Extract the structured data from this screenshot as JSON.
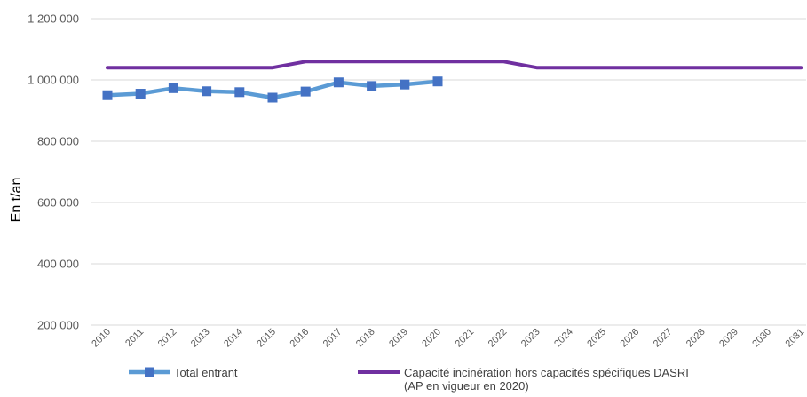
{
  "colors": {
    "grid": "#d9d9d9",
    "total": "#5b9bd5",
    "total_marker": "#4472c4",
    "capacity": "#7030a0"
  },
  "chart_data": {
    "type": "line",
    "title": "",
    "xlabel": "",
    "ylabel": "En t/an",
    "x": [
      "2010",
      "2011",
      "2012",
      "2013",
      "2014",
      "2015",
      "2016",
      "2017",
      "2018",
      "2019",
      "2020",
      "2021",
      "2022",
      "2023",
      "2024",
      "2025",
      "2026",
      "2027",
      "2028",
      "2029",
      "2030",
      "2031"
    ],
    "ylim": [
      200000,
      1200000
    ],
    "yticks": [
      200000,
      400000,
      600000,
      800000,
      1000000,
      1200000
    ],
    "ytick_labels": [
      "200 000",
      "400 000",
      "600 000",
      "800 000",
      "1 000 000",
      "1 200 000"
    ],
    "grid": true,
    "legend_position": "bottom",
    "series": [
      {
        "name": "Total entrant",
        "marker": "square",
        "values": [
          950000,
          955000,
          973000,
          963000,
          960000,
          942000,
          962000,
          992000,
          980000,
          985000,
          995000,
          null,
          null,
          null,
          null,
          null,
          null,
          null,
          null,
          null,
          null,
          null
        ]
      },
      {
        "name": "Capacité incinération hors capacités spécifiques DASRI (AP en vigueur en 2020)",
        "legend_lines": [
          "Capacité incinération hors capacités spécifiques DASRI",
          "(AP en vigueur en 2020)"
        ],
        "marker": "none",
        "values": [
          1040000,
          1040000,
          1040000,
          1040000,
          1040000,
          1040000,
          1060000,
          1060000,
          1060000,
          1060000,
          1060000,
          1060000,
          1060000,
          1040000,
          1040000,
          1040000,
          1040000,
          1040000,
          1040000,
          1040000,
          1040000,
          1040000
        ]
      }
    ]
  }
}
